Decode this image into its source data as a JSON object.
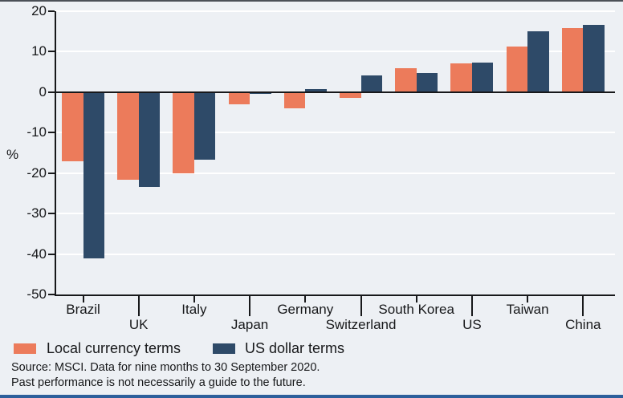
{
  "page": {
    "background": "#edf0f4",
    "top_border_color": "#4b5057",
    "bottom_bar_color": "#2d5f9b"
  },
  "chart_data": {
    "type": "bar",
    "title": "",
    "ylabel": "%",
    "ylim": [
      -50,
      20
    ],
    "yticks": [
      20,
      10,
      0,
      -10,
      -20,
      -30,
      -40,
      -50
    ],
    "grid": true,
    "gridline_color": "#ffffff",
    "axis_color": "#17181a",
    "categories": [
      "Brazil",
      "UK",
      "Italy",
      "Japan",
      "Germany",
      "Switzerland",
      "South Korea",
      "US",
      "Taiwan",
      "China"
    ],
    "series": [
      {
        "name": "Local currency terms",
        "color": "#ec7b5b",
        "values": [
          -17.1,
          -21.6,
          -20.1,
          -3.1,
          -4.0,
          -1.5,
          5.9,
          7.1,
          11.2,
          15.8
        ]
      },
      {
        "name": "US dollar terms",
        "color": "#2e4a68",
        "values": [
          -41.0,
          -23.5,
          -16.7,
          -0.5,
          0.7,
          4.2,
          4.7,
          7.3,
          15.1,
          16.6
        ]
      }
    ],
    "legend_position": "bottom-left"
  },
  "footer": {
    "line1": "Source: MSCI. Data for nine months to 30 September 2020.",
    "line2": "Past performance is not necessarily a guide to the future."
  }
}
